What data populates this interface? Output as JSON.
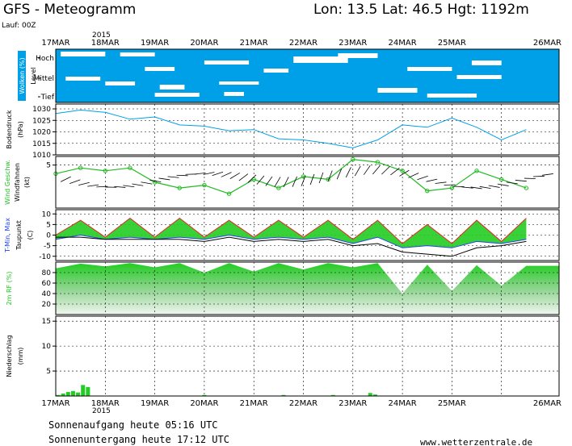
{
  "header": {
    "title": "GFS - Meteogramm",
    "location": "Lon: 13.5 Lat: 46.5 Hgt: 1192m",
    "run": "Lauf: 00Z",
    "year_top": "2015",
    "year_bottom": "2015"
  },
  "footer": {
    "sunrise": "Sonnenaufgang heute 05:16 UTC",
    "sunset": "Sonnenuntergang heute 17:12 UTC",
    "website": "www.wetterzentrale.de"
  },
  "colors": {
    "cloud_bg": "#00a0e8",
    "pressure_line": "#00a0e8",
    "wind_speed": "#22bb22",
    "rh_fill": "#22cc22",
    "temp_max": "#ee2222",
    "temp_min": "#2244ee",
    "dewpoint": "#000000",
    "precip_bar": "#22cc22"
  },
  "chart_data": [
    {
      "type": "heatmap",
      "panel": "clouds",
      "ylabel": "Wolken (%)",
      "ylabel2": "Level",
      "levels": [
        "Hoch",
        "Mittel",
        "Tief"
      ],
      "x_labels": [
        "17MAR",
        "18MAR",
        "19MAR",
        "20MAR",
        "21MAR",
        "22MAR",
        "23MAR",
        "24MAR",
        "25MAR",
        "26MAR"
      ],
      "note": "mostly overcast with scattered clear patches"
    },
    {
      "type": "line",
      "panel": "pressure",
      "ylabel": "Bodendruck",
      "unit": "(hPa)",
      "ylim": [
        1010,
        1030
      ],
      "yticks": [
        1010,
        1015,
        1020,
        1025,
        1030
      ],
      "x": [
        0,
        0.5,
        1,
        1.5,
        2,
        2.5,
        3,
        3.5,
        4,
        4.5,
        5,
        5.5,
        6,
        6.5,
        7,
        7.5,
        8,
        8.5,
        9,
        9.5
      ],
      "values": [
        1028,
        1029.5,
        1028.5,
        1025.5,
        1026.5,
        1023,
        1022.5,
        1020.5,
        1021,
        1017,
        1016.5,
        1015,
        1013,
        1016.5,
        1023,
        1022,
        1026,
        1022,
        1016.5,
        1021
      ]
    },
    {
      "type": "line",
      "panel": "wind",
      "ylabel": "Wind Geschw.",
      "ylabel2": "Windfahnen",
      "unit": "(kt)",
      "yticks": [
        5
      ],
      "ylim": [
        -10,
        8
      ],
      "x": [
        0,
        0.5,
        1,
        1.5,
        2,
        2.5,
        3,
        3.5,
        4,
        4.5,
        5,
        5.5,
        6,
        6.5,
        7,
        7.5,
        8,
        8.5,
        9,
        9.5
      ],
      "values": [
        2,
        4,
        3,
        4,
        -1,
        -3,
        -2,
        -5,
        0,
        -3,
        1,
        0,
        7,
        6,
        3,
        -4,
        -3,
        3,
        0,
        -3
      ]
    },
    {
      "type": "area",
      "panel": "temperature",
      "ylabel": "T-Min, Max",
      "ylabel2": "Taupunkt",
      "unit": "(C)",
      "ylim": [
        -12,
        12
      ],
      "yticks": [
        10,
        5,
        0,
        -5,
        -10
      ],
      "x": [
        0,
        0.5,
        1,
        1.5,
        2,
        2.5,
        3,
        3.5,
        4,
        4.5,
        5,
        5.5,
        6,
        6.5,
        7,
        7.5,
        8,
        8.5,
        9,
        9.5
      ],
      "series": [
        {
          "name": "T-Max",
          "values": [
            0,
            7,
            -1,
            8,
            -1,
            8,
            -1,
            7,
            -1,
            7,
            -1,
            7,
            -2,
            7,
            -4,
            5,
            -4,
            7,
            -3,
            8
          ]
        },
        {
          "name": "T-Min",
          "values": [
            -2,
            0,
            -2,
            -1,
            -2,
            -1,
            -2,
            0,
            -2,
            -1,
            -2,
            -1,
            -4,
            -1,
            -6,
            -5,
            -6,
            -3,
            -4,
            -2
          ]
        },
        {
          "name": "Taupunkt",
          "values": [
            -1,
            -1,
            -2,
            -2,
            -2,
            -2,
            -3,
            -1,
            -3,
            -2,
            -3,
            -2,
            -5,
            -4,
            -8,
            -9,
            -10,
            -6,
            -5,
            -3
          ]
        }
      ]
    },
    {
      "type": "area",
      "panel": "humidity",
      "ylabel": "2m RF (%)",
      "ylim": [
        0,
        100
      ],
      "yticks": [
        80,
        60,
        40,
        20
      ],
      "x": [
        0,
        0.5,
        1,
        1.5,
        2,
        2.5,
        3,
        3.5,
        4,
        4.5,
        5,
        5.5,
        6,
        6.5,
        7,
        7.5,
        8,
        8.5,
        9,
        9.5
      ],
      "values": [
        88,
        97,
        92,
        98,
        90,
        98,
        80,
        98,
        82,
        98,
        86,
        98,
        90,
        98,
        40,
        95,
        45,
        94,
        55,
        93
      ]
    },
    {
      "type": "bar",
      "panel": "precipitation",
      "ylabel": "Niederschlag",
      "unit": "(mm)",
      "ylim": [
        0,
        16
      ],
      "yticks": [
        15,
        10,
        5
      ],
      "x": [
        0.05,
        0.15,
        0.25,
        0.35,
        0.45,
        0.55,
        0.65,
        3.0,
        4.6,
        5.6,
        6.35,
        6.45
      ],
      "values": [
        0.2,
        0.5,
        0.8,
        1.0,
        0.7,
        2.2,
        1.8,
        0.2,
        0.2,
        0.2,
        0.6,
        0.3
      ]
    }
  ]
}
